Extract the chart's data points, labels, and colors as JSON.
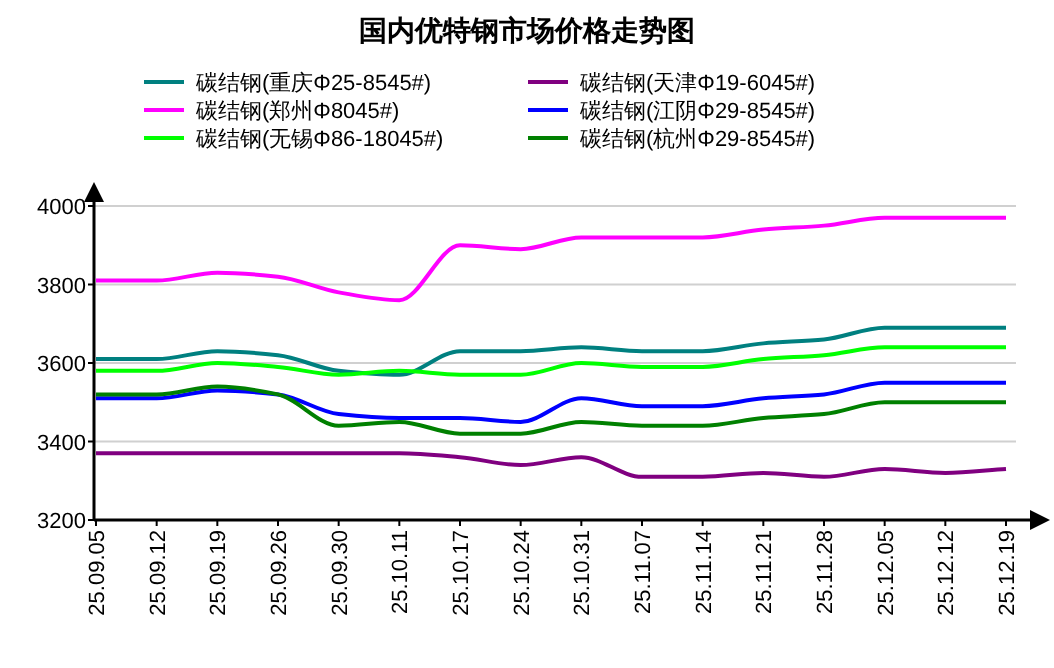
{
  "chart_data": {
    "type": "line",
    "title": "国内优特钢市场价格走势图",
    "categories": [
      "25.09.05",
      "25.09.12",
      "25.09.19",
      "25.09.26",
      "25.09.30",
      "25.10.11",
      "25.10.17",
      "25.10.24",
      "25.10.31",
      "25.11.07",
      "25.11.14",
      "25.11.21",
      "25.11.28",
      "25.12.05",
      "25.12.12",
      "25.12.19"
    ],
    "series": [
      {
        "name": "碳结钢(重庆Φ25-8545#)",
        "color": "#008080",
        "values": [
          3610,
          3610,
          3630,
          3620,
          3580,
          3570,
          3630,
          3630,
          3640,
          3630,
          3630,
          3650,
          3660,
          3690,
          3690,
          3690
        ]
      },
      {
        "name": "碳结钢(天津Φ19-6045#)",
        "color": "#800080",
        "values": [
          3370,
          3370,
          3370,
          3370,
          3370,
          3370,
          3360,
          3340,
          3360,
          3310,
          3310,
          3320,
          3310,
          3330,
          3320,
          3330
        ]
      },
      {
        "name": "碳结钢(郑州Φ8045#)",
        "color": "#ff00ff",
        "values": [
          3810,
          3810,
          3830,
          3820,
          3780,
          3760,
          3900,
          3890,
          3920,
          3920,
          3920,
          3940,
          3950,
          3970,
          3970,
          3970
        ]
      },
      {
        "name": "碳结钢(江阴Φ29-8545#)",
        "color": "#0000ff",
        "values": [
          3510,
          3510,
          3530,
          3520,
          3470,
          3460,
          3460,
          3450,
          3510,
          3490,
          3490,
          3510,
          3520,
          3550,
          3550,
          3550
        ]
      },
      {
        "name": "碳结钢(无锡Φ86-18045#)",
        "color": "#00ff00",
        "values": [
          3580,
          3580,
          3600,
          3590,
          3570,
          3580,
          3570,
          3570,
          3600,
          3590,
          3590,
          3610,
          3620,
          3640,
          3640,
          3640
        ]
      },
      {
        "name": "碳结钢(杭州Φ29-8545#)",
        "color": "#008000",
        "values": [
          3520,
          3520,
          3540,
          3520,
          3440,
          3450,
          3420,
          3420,
          3450,
          3440,
          3440,
          3460,
          3470,
          3500,
          3500,
          3500
        ]
      }
    ],
    "ylim": [
      3200,
      4000
    ],
    "yticks": [
      3200,
      3400,
      3600,
      3800,
      4000
    ],
    "grid": "y",
    "legend": "top",
    "marker": "none",
    "line_style": "solid"
  }
}
